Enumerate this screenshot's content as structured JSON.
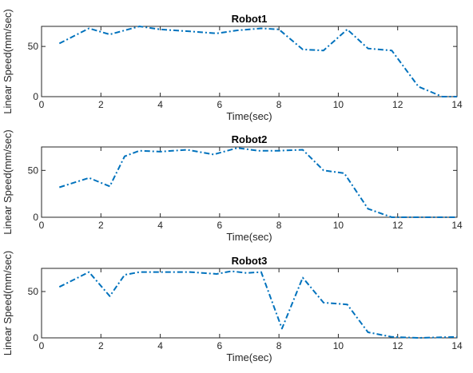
{
  "chart_data": [
    {
      "type": "line",
      "title": "Robot1",
      "xlabel": "Time(sec)",
      "ylabel": "Linear Speed(mm/sec)",
      "xlim": [
        0,
        14
      ],
      "ylim": [
        0,
        70
      ],
      "xticks": [
        0,
        2,
        4,
        6,
        8,
        10,
        12,
        14
      ],
      "yticks": [
        0,
        50
      ],
      "line_color": "#0072BD",
      "line_style": "dash-dot",
      "grid": false,
      "series": [
        {
          "x": [
            0.6,
            1.6,
            2.3,
            3.3,
            4.0,
            5.0,
            5.9,
            6.6,
            7.4,
            8.0,
            8.8,
            9.5,
            10.3,
            11.0,
            11.8,
            12.7,
            13.5,
            14.0
          ],
          "values": [
            53,
            68,
            62,
            70,
            67,
            65,
            63,
            66,
            68,
            67,
            47,
            46,
            67,
            48,
            46,
            10,
            0,
            0
          ]
        }
      ]
    },
    {
      "type": "line",
      "title": "Robot2",
      "xlabel": "Time(sec)",
      "ylabel": "Linear Speed(mm/sec)",
      "xlim": [
        0,
        14
      ],
      "ylim": [
        0,
        75
      ],
      "xticks": [
        0,
        2,
        4,
        6,
        8,
        10,
        12,
        14
      ],
      "yticks": [
        0,
        50
      ],
      "line_color": "#0072BD",
      "line_style": "dash-dot",
      "grid": false,
      "series": [
        {
          "x": [
            0.6,
            1.6,
            2.3,
            2.8,
            3.3,
            4.0,
            4.9,
            5.8,
            6.6,
            7.3,
            8.0,
            8.8,
            9.5,
            10.2,
            11.0,
            11.8,
            12.8,
            14.0
          ],
          "values": [
            32,
            42,
            33,
            65,
            71,
            70,
            72,
            67,
            74,
            71,
            71,
            72,
            50,
            47,
            9,
            0,
            0,
            0
          ]
        }
      ]
    },
    {
      "type": "line",
      "title": "Robot3",
      "xlabel": "Time(sec)",
      "ylabel": "Linear Speed(mm/sec)",
      "xlim": [
        0,
        14
      ],
      "ylim": [
        0,
        75
      ],
      "xticks": [
        0,
        2,
        4,
        6,
        8,
        10,
        12,
        14
      ],
      "yticks": [
        0,
        50
      ],
      "line_color": "#0072BD",
      "line_style": "dash-dot",
      "grid": false,
      "series": [
        {
          "x": [
            0.6,
            1.6,
            2.3,
            2.8,
            3.3,
            4.0,
            5.0,
            5.9,
            6.4,
            6.9,
            7.4,
            8.1,
            8.8,
            9.5,
            10.3,
            11.0,
            11.8,
            12.7,
            14.0
          ],
          "values": [
            55,
            71,
            45,
            68,
            71,
            71,
            71,
            69,
            72,
            70,
            71,
            10,
            65,
            38,
            36,
            6,
            1,
            0,
            1
          ]
        }
      ]
    }
  ]
}
